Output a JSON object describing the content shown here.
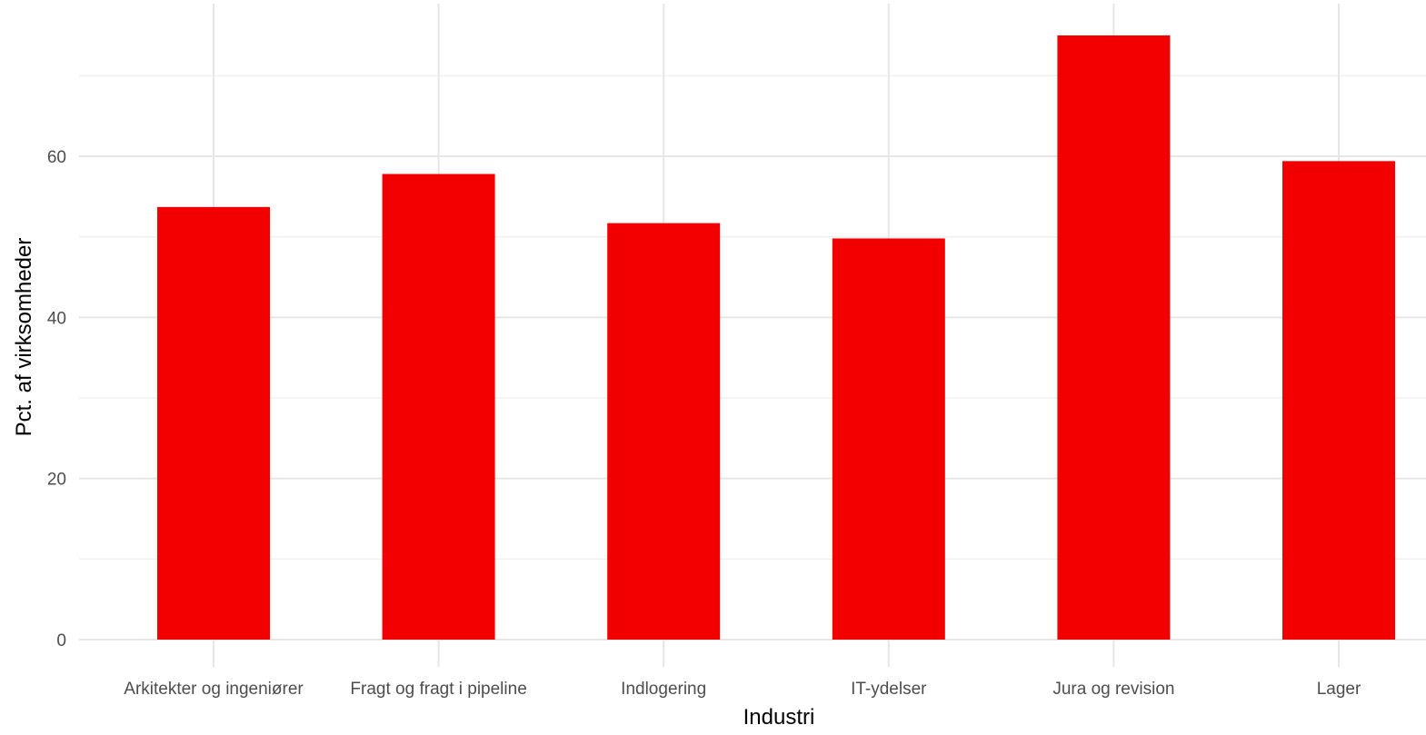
{
  "chart_data": {
    "type": "bar",
    "categories": [
      "Arkitekter og ingeniører",
      "Fragt og fragt i pipeline",
      "Indlogering",
      "IT-ydelser",
      "Jura og revision",
      "Lager"
    ],
    "values": [
      53.7,
      57.8,
      51.7,
      49.8,
      75.0,
      59.4
    ],
    "xlabel": "Industri",
    "ylabel": "Pct. af virksomheder",
    "ylim": [
      0,
      79
    ],
    "yticks": [
      0,
      20,
      40,
      60
    ],
    "grid": true,
    "legend": "none",
    "bar_color": "#f20000"
  }
}
